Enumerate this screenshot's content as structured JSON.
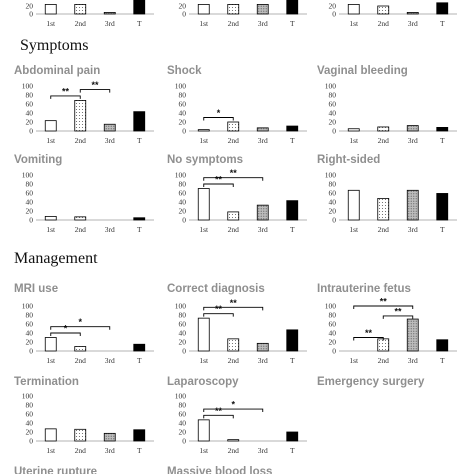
{
  "sections": [
    {
      "title": "Symptoms"
    },
    {
      "title": "Management"
    }
  ],
  "chart_data": [
    {
      "type": "bar",
      "title": "",
      "categories": [
        "1st",
        "2nd",
        "3rd",
        "T"
      ],
      "values": [
        24,
        24,
        4,
        34
      ],
      "ylim": [
        0,
        100
      ],
      "yticks": [
        0,
        20
      ]
    },
    {
      "type": "bar",
      "title": "",
      "categories": [
        "1st",
        "2nd",
        "3rd",
        "T"
      ],
      "values": [
        24,
        24,
        24,
        34
      ],
      "ylim": [
        0,
        100
      ],
      "yticks": [
        0,
        20
      ]
    },
    {
      "type": "bar",
      "title": "",
      "categories": [
        "1st",
        "2nd",
        "3rd",
        "T"
      ],
      "values": [
        24,
        20,
        4,
        28
      ],
      "ylim": [
        0,
        100
      ],
      "yticks": [
        0,
        20
      ]
    },
    {
      "type": "bar",
      "title": "Abdominal pain",
      "categories": [
        "1st",
        "2nd",
        "3rd",
        "T"
      ],
      "values": [
        23,
        68,
        15,
        43
      ],
      "ylim": [
        0,
        100
      ],
      "yticks": [
        0,
        20,
        40,
        60,
        80,
        100
      ],
      "significance": [
        {
          "from": 0,
          "to": 1,
          "label": "**"
        },
        {
          "from": 1,
          "to": 2,
          "label": "**"
        }
      ]
    },
    {
      "type": "bar",
      "title": "Shock",
      "categories": [
        "1st",
        "2nd",
        "3rd",
        "T"
      ],
      "values": [
        3,
        20,
        7,
        11
      ],
      "ylim": [
        0,
        100
      ],
      "yticks": [
        0,
        20,
        40,
        60,
        80,
        100
      ],
      "significance": [
        {
          "from": 0,
          "to": 1,
          "label": "*"
        }
      ]
    },
    {
      "type": "bar",
      "title": "Vaginal bleeding",
      "categories": [
        "1st",
        "2nd",
        "3rd",
        "T"
      ],
      "values": [
        5,
        9,
        12,
        8
      ],
      "ylim": [
        0,
        100
      ],
      "yticks": [
        0,
        20,
        40,
        60,
        80,
        100
      ],
      "significance": []
    },
    {
      "type": "bar",
      "title": "Vomiting",
      "categories": [
        "1st",
        "2nd",
        "3rd",
        "T"
      ],
      "values": [
        8,
        7,
        0,
        5
      ],
      "ylim": [
        0,
        100
      ],
      "yticks": [
        0,
        20,
        40,
        60,
        80,
        100
      ],
      "significance": []
    },
    {
      "type": "bar",
      "title": "No symptoms",
      "categories": [
        "1st",
        "2nd",
        "3rd",
        "T"
      ],
      "values": [
        70,
        18,
        33,
        43
      ],
      "ylim": [
        0,
        100
      ],
      "yticks": [
        0,
        20,
        40,
        60,
        80,
        100
      ],
      "significance": [
        {
          "from": 0,
          "to": 1,
          "label": "**"
        },
        {
          "from": 0,
          "to": 2,
          "label": "**"
        }
      ]
    },
    {
      "type": "bar",
      "title": "Right-sided",
      "categories": [
        "1st",
        "2nd",
        "3rd",
        "T"
      ],
      "values": [
        66,
        48,
        66,
        59
      ],
      "ylim": [
        0,
        100
      ],
      "yticks": [
        0,
        20,
        40,
        60,
        80,
        100
      ],
      "significance": []
    },
    {
      "type": "bar",
      "title": "MRI use",
      "categories": [
        "1st",
        "2nd",
        "3rd",
        "T"
      ],
      "values": [
        30,
        10,
        0,
        15
      ],
      "ylim": [
        0,
        100
      ],
      "yticks": [
        0,
        20,
        40,
        60,
        80,
        100
      ],
      "significance": [
        {
          "from": 0,
          "to": 1,
          "label": "*"
        },
        {
          "from": 0,
          "to": 2,
          "label": "*"
        }
      ]
    },
    {
      "type": "bar",
      "title": "Correct diagnosis",
      "categories": [
        "1st",
        "2nd",
        "3rd",
        "T"
      ],
      "values": [
        73,
        27,
        17,
        47
      ],
      "ylim": [
        0,
        100
      ],
      "yticks": [
        0,
        20,
        40,
        60,
        80,
        100
      ],
      "significance": [
        {
          "from": 0,
          "to": 1,
          "label": "**"
        },
        {
          "from": 0,
          "to": 2,
          "label": "**"
        }
      ]
    },
    {
      "type": "bar",
      "title": "Intrauterine fetus",
      "categories": [
        "1st",
        "2nd",
        "3rd",
        "T"
      ],
      "values": [
        0,
        27,
        71,
        25
      ],
      "ylim": [
        0,
        100
      ],
      "yticks": [
        0,
        20,
        40,
        60,
        80,
        100
      ],
      "significance": [
        {
          "from": 0,
          "to": 1,
          "label": "**"
        },
        {
          "from": 1,
          "to": 2,
          "label": "**"
        },
        {
          "from": 0,
          "to": 2,
          "label": "**"
        }
      ]
    },
    {
      "type": "bar",
      "title": "Termination",
      "categories": [
        "1st",
        "2nd",
        "3rd",
        "T"
      ],
      "values": [
        27,
        26,
        17,
        25
      ],
      "ylim": [
        0,
        100
      ],
      "yticks": [
        0,
        20,
        40,
        60,
        80,
        100
      ],
      "significance": []
    },
    {
      "type": "bar",
      "title": "Laparoscopy",
      "categories": [
        "1st",
        "2nd",
        "3rd",
        "T"
      ],
      "values": [
        47,
        3,
        0,
        20
      ],
      "ylim": [
        0,
        100
      ],
      "yticks": [
        0,
        20,
        40,
        60,
        80,
        100
      ],
      "significance": [
        {
          "from": 0,
          "to": 1,
          "label": "**"
        },
        {
          "from": 0,
          "to": 2,
          "label": "*"
        }
      ]
    },
    {
      "type": "bar",
      "title": "Emergency surgery",
      "categories": [],
      "values": [],
      "ylim": [
        0,
        100
      ],
      "yticks": []
    },
    {
      "type": "bar",
      "title": "Uterine rupture",
      "categories": [],
      "values": [],
      "ylim": [
        0,
        100
      ],
      "yticks": []
    },
    {
      "type": "bar",
      "title": "Massive blood loss",
      "categories": [],
      "values": [],
      "ylim": [
        0,
        100
      ],
      "yticks": []
    }
  ],
  "colors": {
    "title": "#8f8f8f",
    "bar_outline": "#000000",
    "total_fill": "#000000",
    "first_fill": "#ffffff",
    "second_fill": "#fffaf0",
    "third_fill": "#d0d0d0"
  }
}
